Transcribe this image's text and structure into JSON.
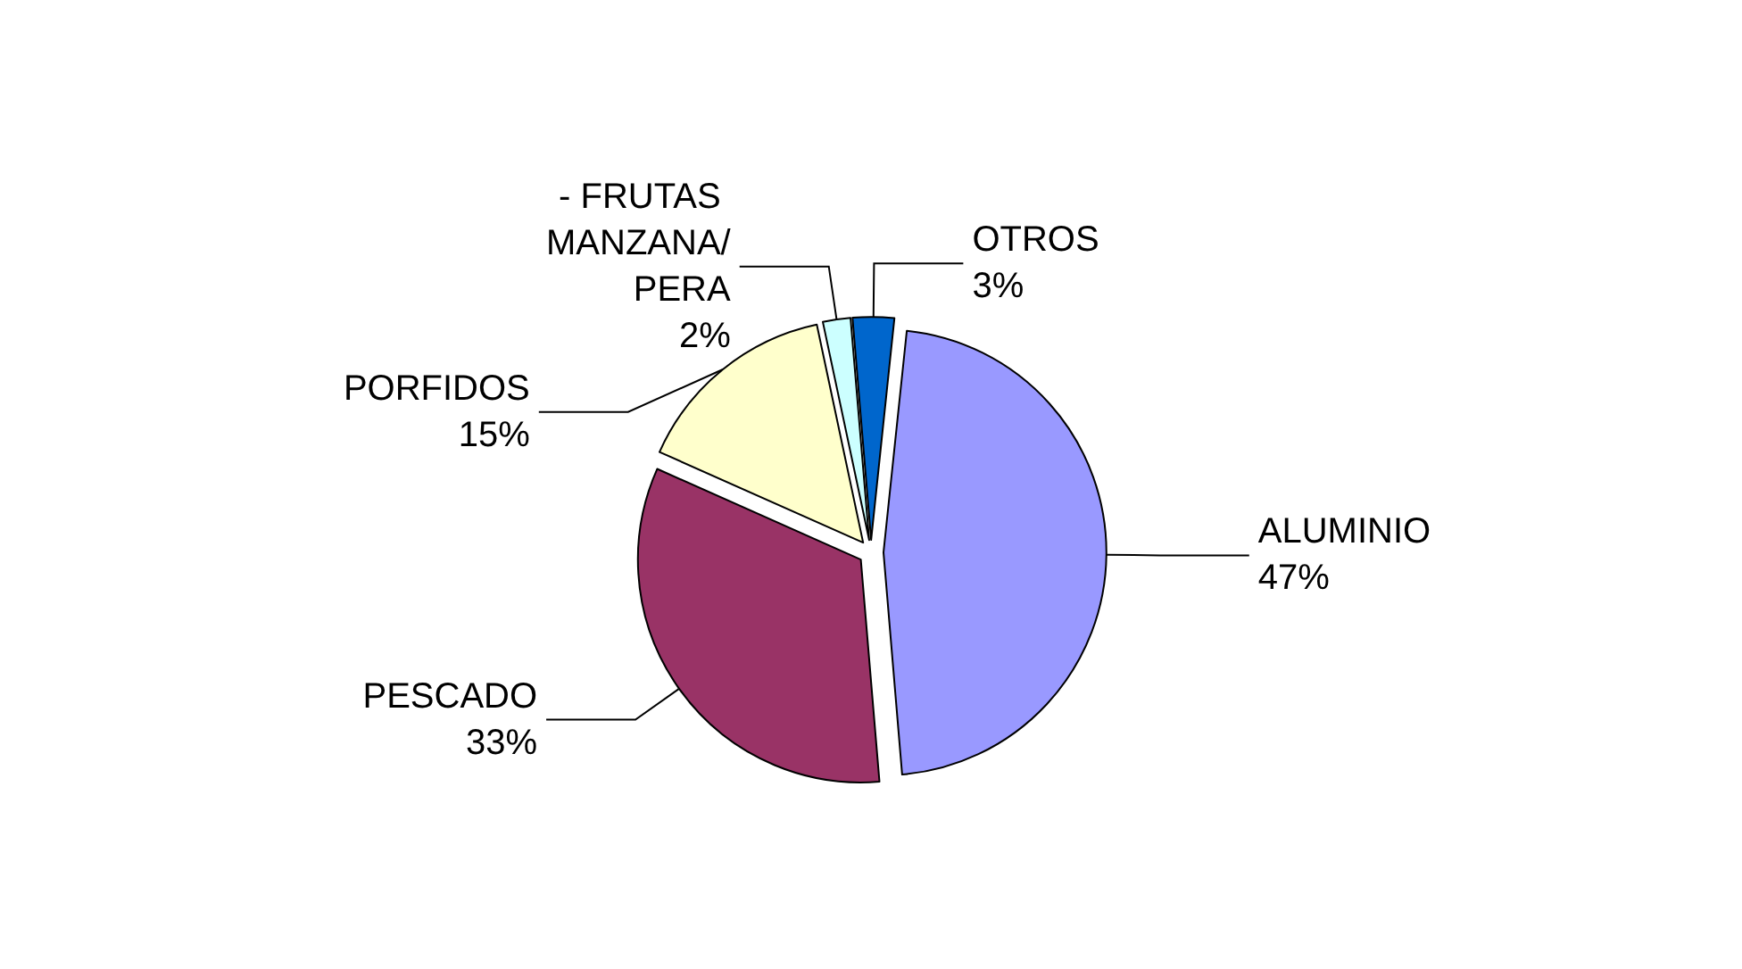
{
  "chart_data": {
    "type": "pie",
    "categories": [
      "ALUMINIO",
      "PESCADO",
      "PORFIDOS",
      "- FRUTAS MANZANA/PERA",
      "OTROS"
    ],
    "values": [
      47,
      33,
      15,
      2,
      3
    ],
    "value_labels": [
      "47%",
      "33%",
      "15%",
      "2%",
      "3%"
    ],
    "colors": [
      "#9999ff",
      "#993366",
      "#ffffcc",
      "#ccffff",
      "#0066cc"
    ],
    "legend": false
  }
}
